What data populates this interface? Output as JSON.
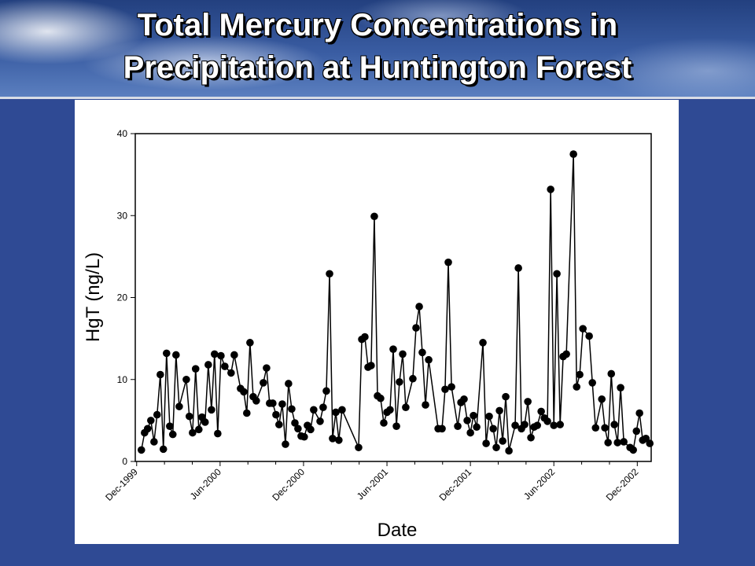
{
  "slide": {
    "title_lines": [
      "Total Mercury Concentrations in",
      "Precipitation at Huntington Forest"
    ]
  },
  "chart_data": {
    "type": "line",
    "color": "#000000",
    "xlabel": "Date",
    "ylabel": "HgT (ng/L)",
    "xlim": [
      -0.1,
      37.0
    ],
    "xticks": [
      {
        "value": 0,
        "label": "Dec-1999"
      },
      {
        "value": 6,
        "label": "Jun-2000"
      },
      {
        "value": 12,
        "label": "Dec-2000"
      },
      {
        "value": 18,
        "label": "Jun-2001"
      },
      {
        "value": 24,
        "label": "Dec-2001"
      },
      {
        "value": 30,
        "label": "Jun-2002"
      },
      {
        "value": 36,
        "label": "Dec-2002"
      }
    ],
    "xminorticks": [
      2,
      4,
      8,
      10,
      14,
      16,
      20,
      22,
      26,
      28,
      32,
      34
    ],
    "ylim": [
      0,
      40
    ],
    "yticks": [
      0,
      10,
      20,
      30,
      40
    ],
    "x": [
      0.34,
      0.57,
      0.79,
      1.02,
      1.25,
      1.47,
      1.7,
      1.92,
      2.15,
      2.38,
      2.6,
      2.83,
      3.06,
      3.57,
      3.79,
      4.02,
      4.24,
      4.47,
      4.7,
      4.92,
      5.15,
      5.38,
      5.6,
      5.83,
      6.06,
      6.34,
      6.79,
      7.02,
      7.47,
      7.7,
      7.92,
      8.15,
      8.38,
      8.6,
      9.11,
      9.34,
      9.56,
      9.79,
      10.02,
      10.24,
      10.47,
      10.7,
      10.92,
      11.15,
      11.38,
      11.6,
      11.83,
      12.05,
      12.28,
      12.51,
      12.73,
      13.19,
      13.41,
      13.64,
      13.87,
      14.09,
      14.32,
      14.54,
      14.77,
      15.96,
      16.19,
      16.41,
      16.64,
      16.86,
      17.09,
      17.32,
      17.54,
      17.77,
      18.0,
      18.22,
      18.45,
      18.68,
      18.9,
      19.13,
      19.35,
      19.86,
      20.09,
      20.32,
      20.54,
      20.77,
      21.0,
      21.68,
      21.96,
      22.18,
      22.41,
      22.64,
      23.09,
      23.32,
      23.54,
      23.77,
      24.0,
      24.22,
      24.45,
      24.9,
      25.13,
      25.35,
      25.64,
      25.86,
      26.09,
      26.32,
      26.54,
      26.77,
      27.22,
      27.45,
      27.67,
      27.9,
      28.13,
      28.35,
      28.58,
      28.81,
      29.09,
      29.32,
      29.54,
      29.77,
      30.0,
      30.22,
      30.45,
      30.67,
      30.9,
      31.41,
      31.64,
      31.86,
      32.09,
      32.54,
      32.77,
      33.0,
      33.45,
      33.67,
      33.9,
      34.13,
      34.35,
      34.58,
      34.8,
      35.03,
      35.48,
      35.71,
      35.94,
      36.16,
      36.39,
      36.62,
      36.9
    ],
    "values": [
      1.4,
      3.5,
      4.0,
      5.0,
      2.4,
      5.7,
      10.6,
      1.5,
      13.2,
      4.3,
      3.3,
      13.0,
      6.7,
      10.0,
      5.5,
      3.5,
      11.3,
      3.9,
      5.4,
      4.8,
      11.8,
      6.3,
      13.1,
      3.4,
      12.9,
      11.6,
      10.8,
      13.0,
      8.9,
      8.5,
      5.9,
      14.5,
      7.9,
      7.4,
      9.6,
      11.4,
      7.1,
      7.1,
      5.7,
      4.5,
      7.0,
      2.1,
      9.5,
      6.4,
      4.7,
      4.0,
      3.1,
      3.0,
      4.4,
      3.9,
      6.3,
      4.9,
      6.6,
      8.6,
      22.9,
      2.8,
      6.0,
      2.6,
      6.3,
      1.7,
      14.9,
      15.2,
      11.5,
      11.7,
      29.9,
      8.0,
      7.7,
      4.7,
      6.0,
      6.3,
      13.7,
      4.3,
      9.7,
      13.1,
      6.6,
      10.1,
      16.3,
      18.9,
      13.3,
      6.9,
      12.4,
      4.0,
      4.0,
      8.8,
      24.3,
      9.1,
      4.3,
      7.2,
      7.6,
      5.0,
      3.5,
      5.6,
      4.2,
      14.5,
      2.2,
      5.5,
      4.0,
      1.7,
      6.2,
      2.5,
      7.9,
      1.3,
      4.4,
      23.6,
      4.0,
      4.5,
      7.3,
      2.9,
      4.2,
      4.4,
      6.1,
      5.3,
      4.9,
      33.2,
      4.4,
      22.9,
      4.5,
      12.8,
      13.1,
      37.5,
      9.1,
      10.6,
      16.2,
      15.3,
      9.6,
      4.1,
      7.6,
      4.1,
      2.3,
      10.7,
      4.5,
      2.3,
      9.0,
      2.4,
      1.7,
      1.4,
      3.7,
      5.9,
      2.6,
      2.8,
      2.2
    ]
  }
}
